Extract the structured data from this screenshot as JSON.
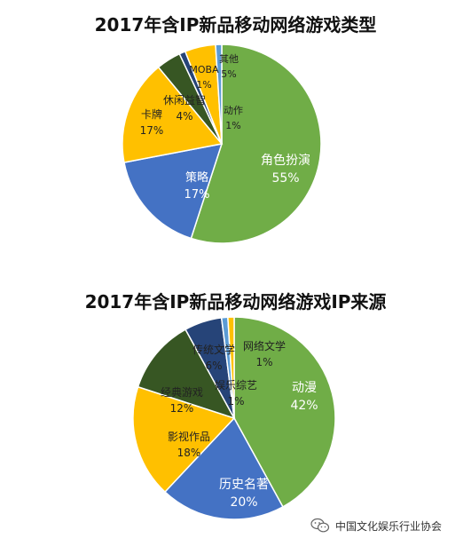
{
  "colors": {
    "green": "#70ad47",
    "blue": "#4472c4",
    "gold": "#ffc000",
    "dark_green": "#375623",
    "dark_blue": "#264478",
    "light_blue": "#5b9bd5",
    "gray": "#a5a5a5"
  },
  "chart_data": [
    {
      "type": "pie",
      "title": "2017年含IP新品移动网络游戏类型",
      "slices": [
        {
          "label": "角色扮演",
          "value": 55,
          "pct_label": "55%",
          "color": "#70ad47"
        },
        {
          "label": "策略",
          "value": 17,
          "pct_label": "17%",
          "color": "#4472c4"
        },
        {
          "label": "卡牌",
          "value": 17,
          "pct_label": "17%",
          "color": "#ffc000"
        },
        {
          "label": "休闲益智",
          "value": 4,
          "pct_label": "4%",
          "color": "#375623"
        },
        {
          "label": "MOBA",
          "value": 1,
          "pct_label": "1%",
          "color": "#264478"
        },
        {
          "label": "其他",
          "value": 5,
          "pct_label": "5%",
          "color": "#ffc000"
        },
        {
          "label": "动作",
          "value": 1,
          "pct_label": "1%",
          "color": "#5b9bd5"
        }
      ]
    },
    {
      "type": "pie",
      "title": "2017年含IP新品移动网络游戏IP来源",
      "slices": [
        {
          "label": "动漫",
          "value": 42,
          "pct_label": "42%",
          "color": "#70ad47"
        },
        {
          "label": "历史名著",
          "value": 20,
          "pct_label": "20%",
          "color": "#4472c4"
        },
        {
          "label": "影视作品",
          "value": 18,
          "pct_label": "18%",
          "color": "#ffc000"
        },
        {
          "label": "经典游戏",
          "value": 12,
          "pct_label": "12%",
          "color": "#375623"
        },
        {
          "label": "传统文学",
          "value": 6,
          "pct_label": "6%",
          "color": "#264478"
        },
        {
          "label": "网络文学",
          "value": 1,
          "pct_label": "1%",
          "color": "#5b9bd5"
        },
        {
          "label": "娱乐综艺",
          "value": 1,
          "pct_label": "1%",
          "color": "#ffc000"
        }
      ]
    }
  ],
  "watermark": {
    "icon": "wechat-icon",
    "text": "中国文化娱乐行业协会"
  }
}
